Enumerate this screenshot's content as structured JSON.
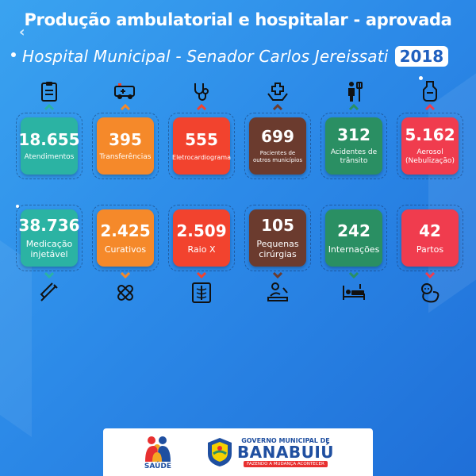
{
  "header": {
    "title": "Produção ambulatorial e hospitalar - aprovada",
    "subtitle": "Hospital Municipal - Senador Carlos Jereissati",
    "year": "2018"
  },
  "top_row": [
    {
      "value": "18.655",
      "label": "Atendimentos",
      "color": "#2bb3a3",
      "icon": "clipboard-icon"
    },
    {
      "value": "395",
      "label": "Transferências",
      "color": "#f5892a",
      "icon": "ambulance-icon"
    },
    {
      "value": "555",
      "label": "Eletrocardiograma",
      "color": "#f2432e",
      "icon": "stethoscope-icon"
    },
    {
      "value": "699",
      "label": "Pacientes de outros municípios",
      "color": "#6b3b2e",
      "icon": "care-hands-icon"
    },
    {
      "value": "312",
      "label": "Acidentes de trânsito",
      "color": "#2a8f63",
      "icon": "patient-iv-icon"
    },
    {
      "value": "5.162",
      "label": "Aerosol (Nebulização)",
      "color": "#f03c4e",
      "icon": "nebulizer-icon"
    }
  ],
  "bottom_row": [
    {
      "value": "38.736",
      "label": "Medicação injetável",
      "color": "#2bb3a3",
      "icon": "syringe-icon"
    },
    {
      "value": "2.425",
      "label": "Curativos",
      "color": "#f5892a",
      "icon": "bandage-icon"
    },
    {
      "value": "2.509",
      "label": "Raio X",
      "color": "#f2432e",
      "icon": "xray-icon"
    },
    {
      "value": "105",
      "label": "Pequenas cirúrgias",
      "color": "#6b3b2e",
      "icon": "surgery-icon"
    },
    {
      "value": "242",
      "label": "Internações",
      "color": "#2a8f63",
      "icon": "hospital-bed-icon"
    },
    {
      "value": "42",
      "label": "Partos",
      "color": "#f03c4e",
      "icon": "baby-icon"
    }
  ],
  "footer": {
    "saude_label": "SAÚDE",
    "gov_top": "GOVERNO MUNICIPAL DE",
    "gov_name": "BANABUIÚ",
    "gov_slogan": "FAZENDO A MUDANÇA ACONTECER"
  }
}
